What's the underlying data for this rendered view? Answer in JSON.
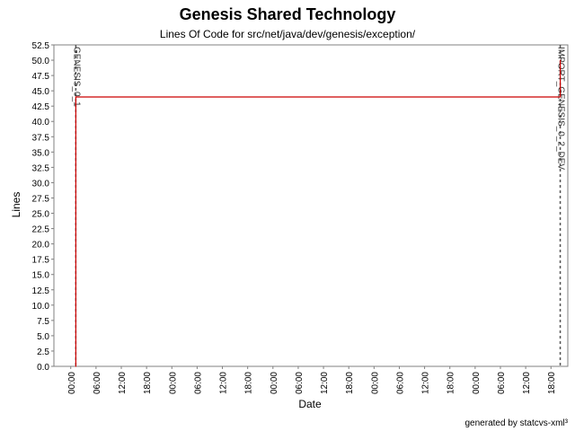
{
  "header": {
    "title": "Genesis Shared Technology",
    "subtitle": "Lines Of Code for src/net/java/dev/genesis/exception/"
  },
  "footer": {
    "credit": "generated by statcvs-xml³"
  },
  "chart_data": {
    "type": "line",
    "title": "Genesis Shared Technology",
    "subtitle": "Lines Of Code for src/net/java/dev/genesis/exception/",
    "xlabel": "Date",
    "ylabel": "Lines",
    "ylim": [
      0,
      52.5
    ],
    "yticks": [
      0.0,
      2.5,
      5.0,
      7.5,
      10.0,
      12.5,
      15.0,
      17.5,
      20.0,
      22.5,
      25.0,
      27.5,
      30.0,
      32.5,
      35.0,
      37.5,
      40.0,
      42.5,
      45.0,
      47.5,
      50.0,
      52.5
    ],
    "xlim_hours": [
      -2,
      59
    ],
    "xticks": [
      {
        "hour": 0,
        "label": "00:00"
      },
      {
        "hour": 3,
        "label": "06:00"
      },
      {
        "hour": 6,
        "label": "12:00"
      },
      {
        "hour": 9,
        "label": "18:00"
      },
      {
        "hour": 12,
        "label": "00:00"
      },
      {
        "hour": 15,
        "label": "06:00"
      },
      {
        "hour": 18,
        "label": "12:00"
      },
      {
        "hour": 21,
        "label": "18:00"
      },
      {
        "hour": 24,
        "label": "00:00"
      },
      {
        "hour": 27,
        "label": "06:00"
      },
      {
        "hour": 30,
        "label": "12:00"
      },
      {
        "hour": 33,
        "label": "18:00"
      },
      {
        "hour": 36,
        "label": "00:00"
      },
      {
        "hour": 39,
        "label": "06:00"
      },
      {
        "hour": 42,
        "label": "12:00"
      },
      {
        "hour": 45,
        "label": "18:00"
      },
      {
        "hour": 48,
        "label": "00:00"
      },
      {
        "hour": 51,
        "label": "06:00"
      },
      {
        "hour": 54,
        "label": "12:00"
      },
      {
        "hour": 57,
        "label": "18:00"
      }
    ],
    "grid": true,
    "series": [
      {
        "color": "#cc0000",
        "points": [
          {
            "hour": 0.6,
            "y": 0
          },
          {
            "hour": 0.6,
            "y": 44
          },
          {
            "hour": 58.1,
            "y": 44
          },
          {
            "hour": 58.1,
            "y": 50
          }
        ]
      }
    ],
    "markers": [
      {
        "hour": 0.6,
        "label": "GENESIS_0_1"
      },
      {
        "hour": 58.1,
        "label": "IMPORT_GENESIS_0_2_DEV"
      }
    ]
  }
}
